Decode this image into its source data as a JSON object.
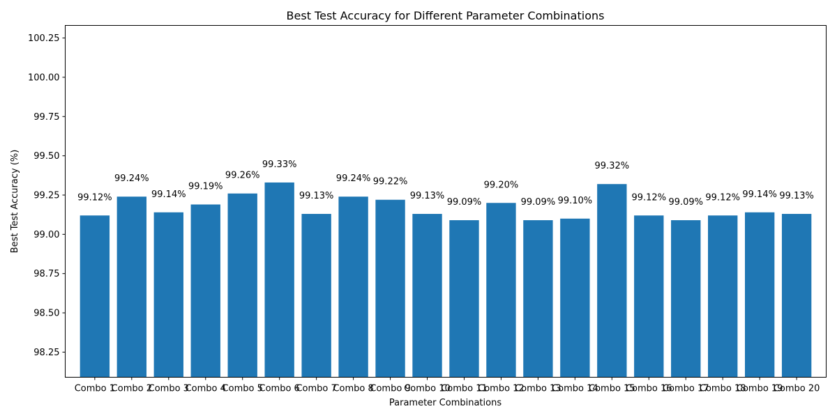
{
  "chart_data": {
    "type": "bar",
    "title": "Best Test Accuracy for Different Parameter Combinations",
    "xlabel": "Parameter Combinations",
    "ylabel": "Best Test Accuracy (%)",
    "ylim": [
      98.09,
      100.33
    ],
    "yticks": [
      98.25,
      98.5,
      98.75,
      99.0,
      99.25,
      99.5,
      99.75,
      100.0,
      100.25
    ],
    "ytick_labels": [
      "98.25",
      "98.50",
      "98.75",
      "99.00",
      "99.25",
      "99.50",
      "99.75",
      "100.00",
      "100.25"
    ],
    "categories": [
      "Combo 1",
      "Combo 2",
      "Combo 3",
      "Combo 4",
      "Combo 5",
      "Combo 6",
      "Combo 7",
      "Combo 8",
      "Combo 9",
      "Combo 10",
      "Combo 11",
      "Combo 12",
      "Combo 13",
      "Combo 14",
      "Combo 15",
      "Combo 16",
      "Combo 17",
      "Combo 18",
      "Combo 19",
      "Combo 20"
    ],
    "values": [
      99.12,
      99.24,
      99.14,
      99.19,
      99.26,
      99.33,
      99.13,
      99.24,
      99.22,
      99.13,
      99.09,
      99.2,
      99.09,
      99.1,
      99.32,
      99.12,
      99.09,
      99.12,
      99.14,
      99.13
    ],
    "value_labels": [
      "99.12%",
      "99.24%",
      "99.14%",
      "99.19%",
      "99.26%",
      "99.33%",
      "99.13%",
      "99.24%",
      "99.22%",
      "99.13%",
      "99.09%",
      "99.20%",
      "99.09%",
      "99.10%",
      "99.32%",
      "99.12%",
      "99.09%",
      "99.12%",
      "99.14%",
      "99.13%"
    ],
    "bar_color": "#1f77b4",
    "grid": false,
    "legend": "none"
  }
}
